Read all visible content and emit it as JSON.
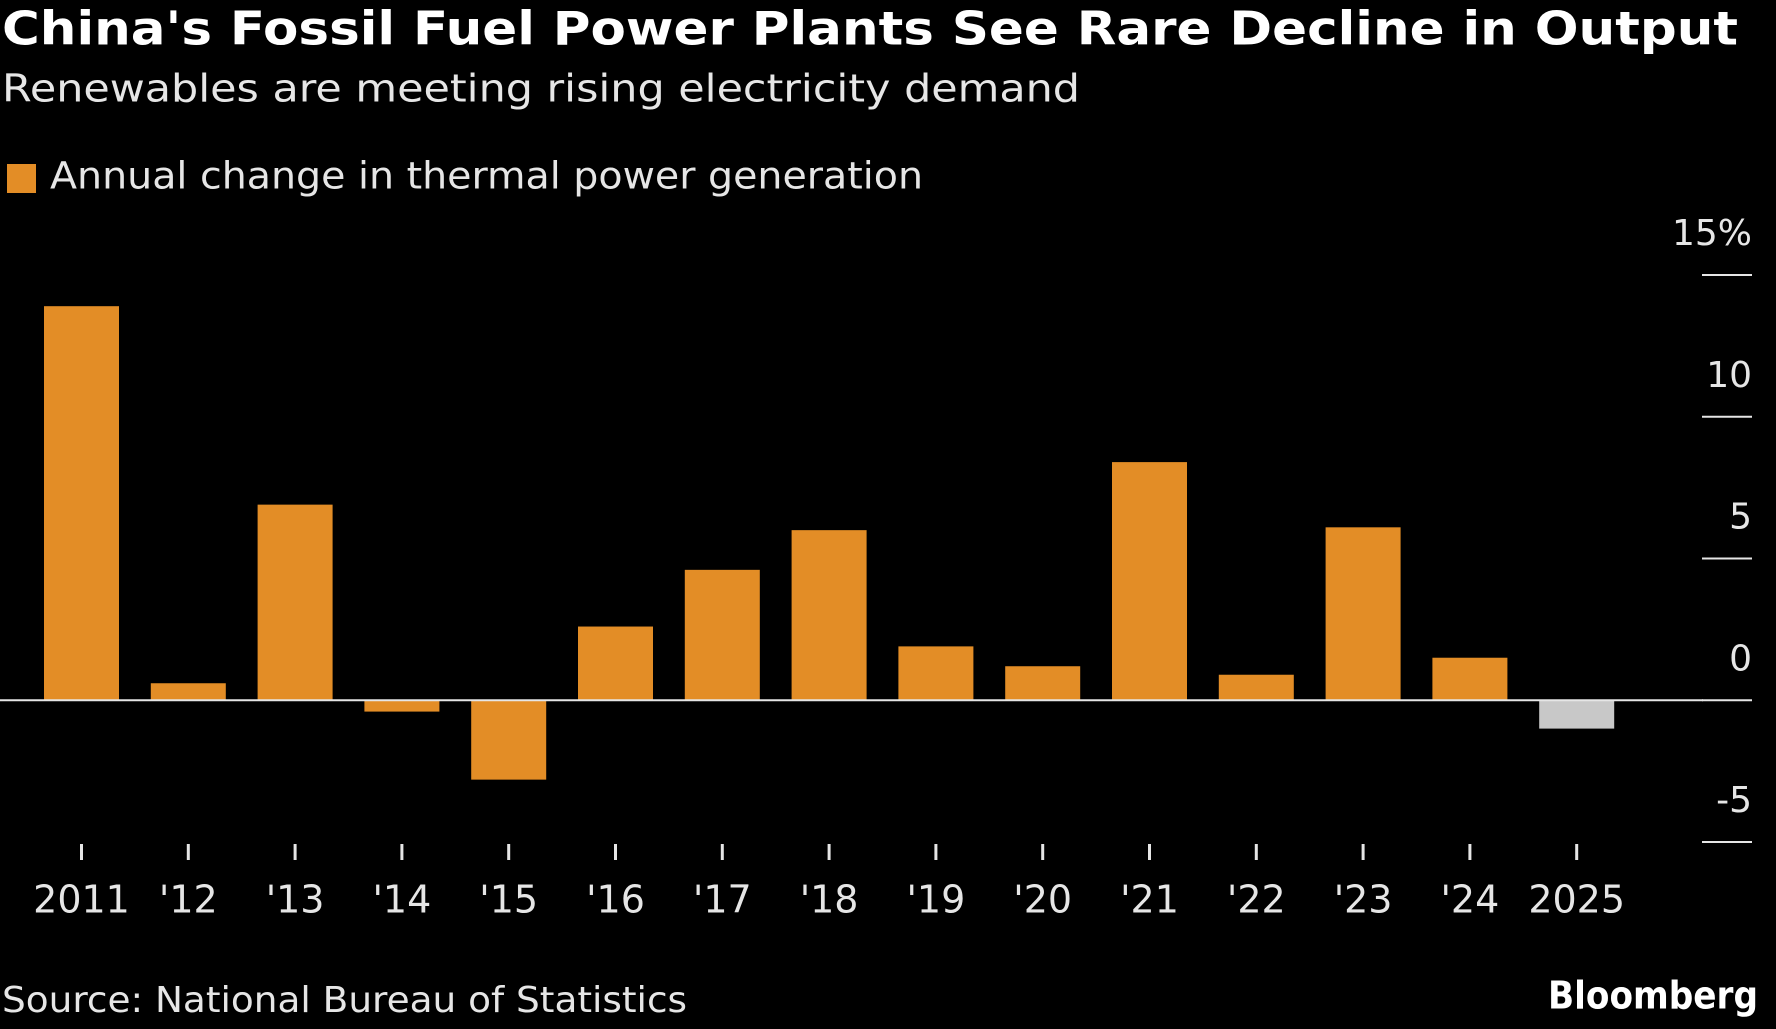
{
  "chart_data": {
    "type": "bar",
    "title": "China's Fossil Fuel Power Plants See Rare Decline in Output",
    "subtitle": "Renewables are meeting rising electricity demand",
    "source": "Source: National Bureau of Statistics",
    "brand": "Bloomberg",
    "categories": [
      "2011",
      "'12",
      "'13",
      "'14",
      "'15",
      "'16",
      "'17",
      "'18",
      "'19",
      "'20",
      "'21",
      "'22",
      "'23",
      "'24",
      "2025"
    ],
    "series": [
      {
        "name": "Annual change in thermal power generation",
        "color": "#e38d26",
        "values": [
          13.9,
          0.6,
          6.9,
          -0.4,
          -2.8,
          2.6,
          4.6,
          6.0,
          1.9,
          1.2,
          8.4,
          0.9,
          6.1,
          1.5,
          -1.0
        ],
        "colors": [
          "#e38d26",
          "#e38d26",
          "#e38d26",
          "#e38d26",
          "#e38d26",
          "#e38d26",
          "#e38d26",
          "#e38d26",
          "#e38d26",
          "#e38d26",
          "#e38d26",
          "#e38d26",
          "#e38d26",
          "#e38d26",
          "#c8c8c8"
        ]
      }
    ],
    "ylim": [
      -5,
      15
    ],
    "yticks": [
      -5,
      0,
      5,
      10,
      {
        "value": 15,
        "label": "15%"
      }
    ],
    "y_axis_side": "right"
  }
}
